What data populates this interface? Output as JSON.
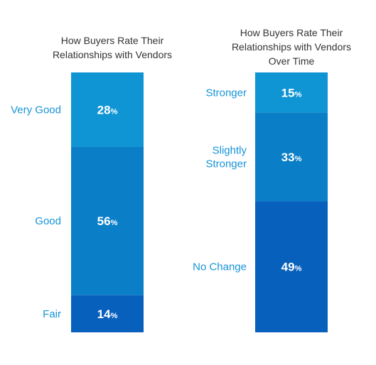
{
  "colors": {
    "light": "#0f95d4",
    "medium": "#0a7fc8",
    "dark": "#0860bd",
    "category_text": "#1694d8",
    "title_text": "#333333",
    "value_text": "#ffffff"
  },
  "chart_data": [
    {
      "type": "bar",
      "subtype": "stacked-100",
      "title": "How Buyers Rate Their Relationships with Vendors",
      "categories": [
        "Very Good",
        "Good",
        "Fair"
      ],
      "values": [
        28,
        56,
        14
      ],
      "value_labels": [
        "28",
        "56",
        "14"
      ],
      "unit": "%",
      "ylim": [
        0,
        98
      ]
    },
    {
      "type": "bar",
      "subtype": "stacked-100",
      "title": "How Buyers Rate Their Relationships with Vendors Over Time",
      "categories": [
        "Stronger",
        "Slightly Stronger",
        "No Change"
      ],
      "values": [
        15,
        33,
        49
      ],
      "value_labels": [
        "15",
        "33",
        "49"
      ],
      "unit": "%",
      "ylim": [
        0,
        97
      ]
    }
  ]
}
